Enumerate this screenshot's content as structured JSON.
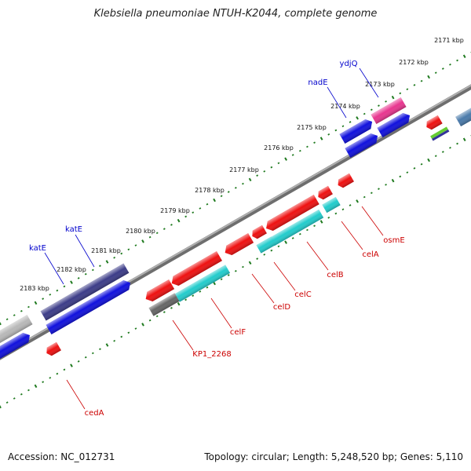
{
  "title": "Klebsiella pneumoniae NTUH-K2044, complete genome",
  "accession": "Accession: NC_012731",
  "summary": "Topology: circular; Length: 5,248,520 bp; Genes: 5,110",
  "colors": {
    "backbone": "#8a8a8a",
    "ticks": "#1f7a1f",
    "forward_label": "#0000cc",
    "reverse_label": "#cc0000"
  },
  "kbp_ticks": [
    {
      "kbp": 2171,
      "text": "2171 kbp"
    },
    {
      "kbp": 2172,
      "text": "2172 kbp"
    },
    {
      "kbp": 2173,
      "text": "2173 kbp"
    },
    {
      "kbp": 2174,
      "text": "2174 kbp"
    },
    {
      "kbp": 2175,
      "text": "2175 kbp"
    },
    {
      "kbp": 2176,
      "text": "2176 kbp"
    },
    {
      "kbp": 2177,
      "text": "2177 kbp"
    },
    {
      "kbp": 2178,
      "text": "2178 kbp"
    },
    {
      "kbp": 2179,
      "text": "2179 kbp"
    },
    {
      "kbp": 2180,
      "text": "2180 kbp"
    },
    {
      "kbp": 2181,
      "text": "2181 kbp"
    },
    {
      "kbp": 2182,
      "text": "2182 kbp"
    },
    {
      "kbp": 2183,
      "text": "2183 kbp"
    }
  ],
  "forward_genes": [
    {
      "name": "ydjQ",
      "color": "#e8368f"
    },
    {
      "name": "nadE",
      "color": "#1111dd"
    },
    {
      "name": "katE",
      "color": "#3c3c88"
    },
    {
      "name": "katE",
      "color": "#1111dd"
    }
  ],
  "reverse_genes": [
    {
      "name": "osmE",
      "color": "#ee1111"
    },
    {
      "name": "celA",
      "color": "#ee1111"
    },
    {
      "name": "celB",
      "color": "#22cccc"
    },
    {
      "name": "celC",
      "color": "#22cccc"
    },
    {
      "name": "celD",
      "color": "#ee1111"
    },
    {
      "name": "celF",
      "color": "#ee1111"
    },
    {
      "name": "KP1_2268",
      "color": "#666666"
    },
    {
      "name": "cedA",
      "color": "#ee1111"
    }
  ]
}
